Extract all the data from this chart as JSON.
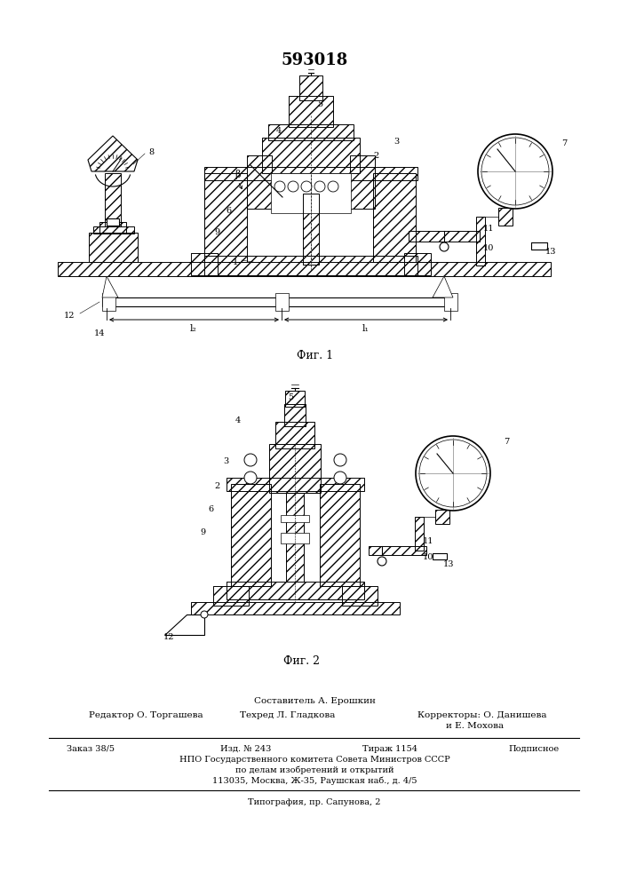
{
  "patent_number": "593018",
  "background_color": "#ffffff",
  "fig_width": 7.07,
  "fig_height": 10.0,
  "dpi": 100,
  "fig1_caption": "Фиг. 1",
  "fig2_caption": "Фиг. 2",
  "footer_composer": "Составитель А. Ерошкин",
  "footer_editor": "Редактор О. Торгашева",
  "footer_tech": "Техред Л. Гладкова",
  "footer_correctors": "Корректоры: О. Данишева",
  "footer_correctors2": "и Е. Мохова",
  "footer_order": "Заказ 38/5",
  "footer_izd": "Изд. № 243",
  "footer_tirazh": "Тираж 1154",
  "footer_podpisnoe": "Подписное",
  "footer_npo": "НПО Государственного комитета Совета Министров СССР",
  "footer_po_delam": "по делам изобретений и открытий",
  "footer_address": "113035, Москва, Ж-35, Раушская наб., д. 4/5",
  "footer_tipografia": "Типография, пр. Сапунова, 2"
}
